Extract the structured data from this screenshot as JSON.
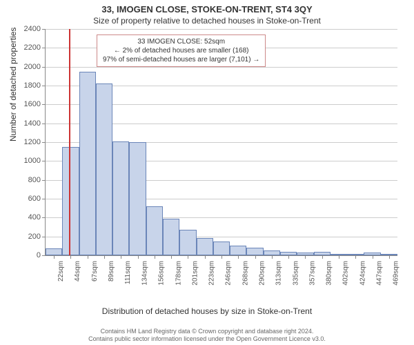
{
  "title_main": "33, IMOGEN CLOSE, STOKE-ON-TRENT, ST4 3QY",
  "title_sub": "Size of property relative to detached houses in Stoke-on-Trent",
  "chart": {
    "type": "histogram",
    "y_label": "Number of detached properties",
    "x_label": "Distribution of detached houses by size in Stoke-on-Trent",
    "ylim": [
      0,
      2400
    ],
    "ytick_step": 200,
    "x_categories": [
      "22sqm",
      "44sqm",
      "67sqm",
      "89sqm",
      "111sqm",
      "134sqm",
      "156sqm",
      "178sqm",
      "201sqm",
      "223sqm",
      "246sqm",
      "268sqm",
      "290sqm",
      "313sqm",
      "335sqm",
      "357sqm",
      "380sqm",
      "402sqm",
      "424sqm",
      "447sqm",
      "469sqm"
    ],
    "values": [
      70,
      1150,
      1950,
      1820,
      1210,
      1200,
      520,
      390,
      270,
      180,
      150,
      100,
      80,
      50,
      40,
      30,
      40,
      10,
      5,
      30,
      5
    ],
    "bar_fill": "#c8d4ea",
    "bar_border": "#6a85b8",
    "background_color": "#ffffff",
    "grid_color": "#cccccc",
    "highlight_x_index": 1.4,
    "highlight_color": "#cc3333"
  },
  "annotation": {
    "line1": "33 IMOGEN CLOSE: 52sqm",
    "line2": "← 2% of detached houses are smaller (168)",
    "line3": "97% of semi-detached houses are larger (7,101) →"
  },
  "footer": {
    "line1": "Contains HM Land Registry data © Crown copyright and database right 2024.",
    "line2": "Contains public sector information licensed under the Open Government Licence v3.0."
  }
}
